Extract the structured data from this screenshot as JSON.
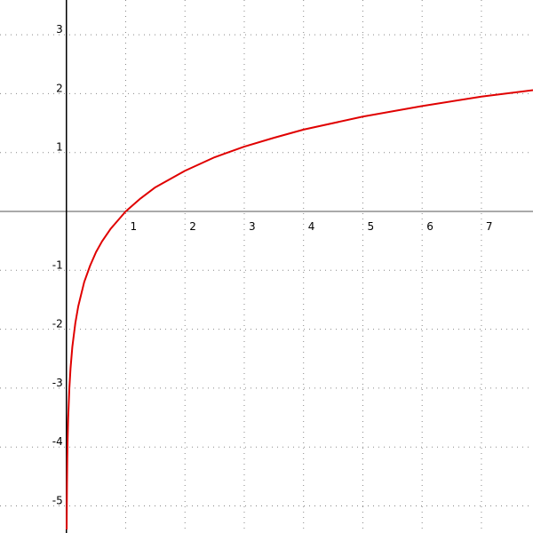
{
  "chart_data": {
    "type": "line",
    "x": [
      0.0045,
      0.007,
      0.01,
      0.015,
      0.02,
      0.03,
      0.05,
      0.07,
      0.1,
      0.15,
      0.2,
      0.3,
      0.4,
      0.5,
      0.6,
      0.75,
      1,
      1.25,
      1.5,
      2,
      2.5,
      3,
      3.5,
      4,
      5,
      6,
      7,
      7.87
    ],
    "series": [
      {
        "color": "#e00000",
        "values": [
          -5.4,
          -4.96,
          -4.61,
          -4.2,
          -3.91,
          -3.51,
          -3.0,
          -2.66,
          -2.3,
          -1.9,
          -1.61,
          -1.2,
          -0.92,
          -0.69,
          -0.51,
          -0.29,
          0,
          0.22,
          0.41,
          0.69,
          0.92,
          1.1,
          1.25,
          1.39,
          1.61,
          1.79,
          1.95,
          2.06
        ]
      }
    ],
    "xlim": [
      -1.12,
      7.87
    ],
    "ylim": [
      -5.46,
      3.59
    ],
    "xticks": [
      1,
      2,
      3,
      4,
      5,
      6,
      7
    ],
    "yticks": [
      -5,
      -4,
      -3,
      -2,
      -1,
      1,
      2,
      3
    ],
    "grid": true
  }
}
